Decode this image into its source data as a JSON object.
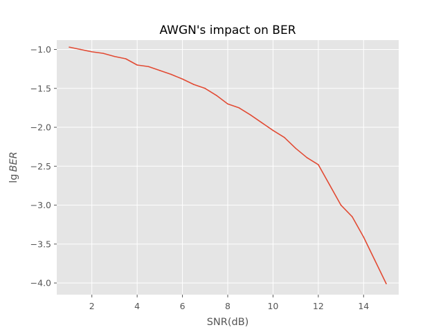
{
  "chart_data": {
    "type": "line",
    "title": "AWGN's impact on BER",
    "xlabel": "SNR(dB)",
    "ylabel_prefix": "lg",
    "ylabel_var": "BER",
    "xlim": [
      0.45,
      15.55
    ],
    "ylim": [
      -4.15,
      -0.88
    ],
    "xticks": [
      2,
      4,
      6,
      8,
      10,
      12,
      14
    ],
    "xtick_labels": [
      "2",
      "4",
      "6",
      "8",
      "10",
      "12",
      "14"
    ],
    "yticks": [
      -1.0,
      -1.5,
      -2.0,
      -2.5,
      -3.0,
      -3.5,
      -4.0
    ],
    "ytick_labels": [
      "−1.0",
      "−1.5",
      "−2.0",
      "−2.5",
      "−3.0",
      "−3.5",
      "−4.0"
    ],
    "grid": true,
    "background": "#e5e5e5",
    "series": [
      {
        "color": "#e24a33",
        "x": [
          1,
          1.5,
          2,
          2.5,
          3,
          3.5,
          4,
          4.5,
          5,
          5.5,
          6,
          6.5,
          7,
          7.5,
          8,
          8.5,
          9,
          9.5,
          10,
          10.5,
          11,
          11.5,
          12,
          12.5,
          13,
          13.5,
          14,
          14.5,
          15
        ],
        "y": [
          -0.97,
          -1.0,
          -1.03,
          -1.05,
          -1.09,
          -1.12,
          -1.2,
          -1.22,
          -1.27,
          -1.32,
          -1.38,
          -1.45,
          -1.5,
          -1.59,
          -1.7,
          -1.75,
          -1.84,
          -1.94,
          -2.04,
          -2.13,
          -2.27,
          -2.39,
          -2.48,
          -2.74,
          -3.0,
          -3.15,
          -3.41,
          -3.71,
          -4.01
        ]
      }
    ]
  }
}
